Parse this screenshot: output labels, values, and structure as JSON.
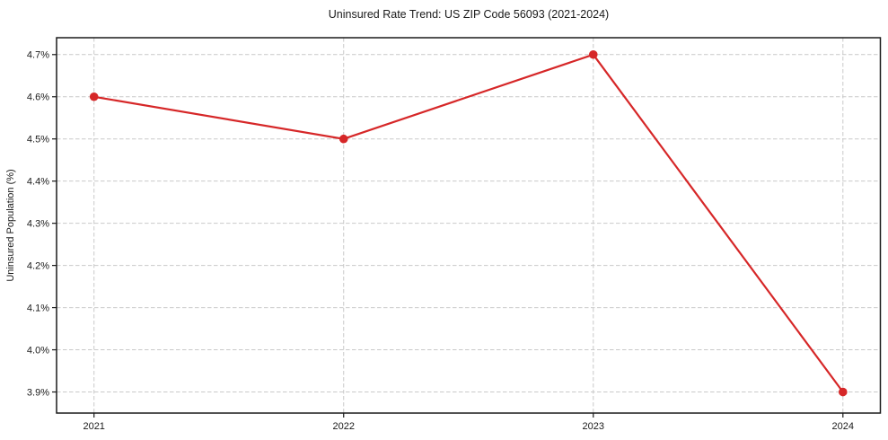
{
  "chart_data": {
    "type": "line",
    "title": "Uninsured Rate Trend: US ZIP Code 56093 (2021-2024)",
    "xlabel": "",
    "ylabel": "Uninsured Population (%)",
    "x": [
      2021,
      2022,
      2023,
      2024
    ],
    "values": [
      4.6,
      4.5,
      4.7,
      3.9
    ],
    "xtick_labels": [
      "2021",
      "2022",
      "2023",
      "2024"
    ],
    "yticks": [
      3.9,
      4.0,
      4.1,
      4.2,
      4.3,
      4.4,
      4.5,
      4.6,
      4.7
    ],
    "ytick_labels": [
      "3.9%",
      "4.0%",
      "4.1%",
      "4.2%",
      "4.3%",
      "4.4%",
      "4.5%",
      "4.6%",
      "4.7%"
    ],
    "xlim": [
      2020.85,
      2024.15
    ],
    "ylim": [
      3.85,
      4.74
    ],
    "grid": true,
    "legend": false,
    "line_color": "#d62728",
    "marker": "circle",
    "grid_color": "#c9c9c9",
    "axis_color": "#1a1a1a",
    "text_color": "#1a1a1a",
    "background_color": "#ffffff"
  }
}
